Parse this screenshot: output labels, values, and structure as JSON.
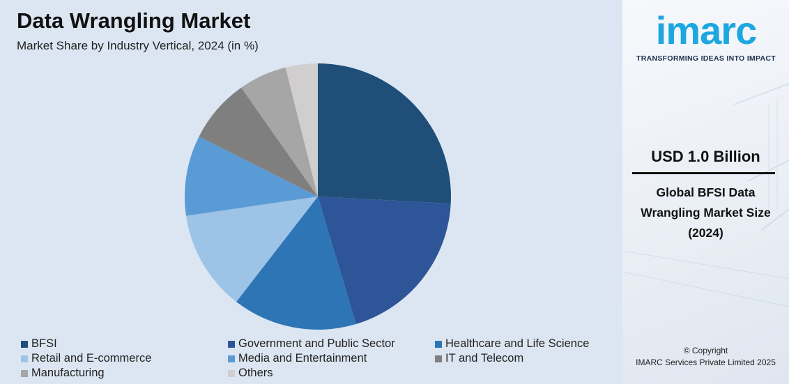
{
  "header": {
    "title": "Data Wrangling Market",
    "subtitle": "Market Share by Industry Vertical, 2024 (in %)"
  },
  "chart_data": {
    "type": "pie",
    "title": "Data Wrangling Market",
    "subtitle": "Market Share by Industry Vertical, 2024 (in %)",
    "categories": [
      "BFSI",
      "Government and Public Sector",
      "Healthcare and Life Science",
      "Retail and E-commerce",
      "Media and Entertainment",
      "IT and Telecom",
      "Manufacturing",
      "Others"
    ],
    "values": [
      26.5,
      20,
      15.5,
      12.5,
      10,
      8,
      6,
      4
    ],
    "colors": [
      "#1f4e79",
      "#2e5597",
      "#2e75b6",
      "#9dc3e6",
      "#5b9bd5",
      "#7f7f7f",
      "#a6a6a6",
      "#d0cece"
    ],
    "start_angle": "12 o'clock",
    "direction": "clockwise",
    "legend_position": "bottom"
  },
  "sidebar": {
    "logo": "imarc",
    "tagline": "TRANSFORMING IDEAS INTO IMPACT",
    "stat_value": "USD 1.0 Billion",
    "stat_label_lines": [
      "Global BFSI Data",
      "Wrangling Market Size",
      "(2024)"
    ],
    "copyright_lines": [
      "© Copyright",
      "IMARC Services Private Limited 2025"
    ],
    "accent_color": "#1da7e0"
  }
}
